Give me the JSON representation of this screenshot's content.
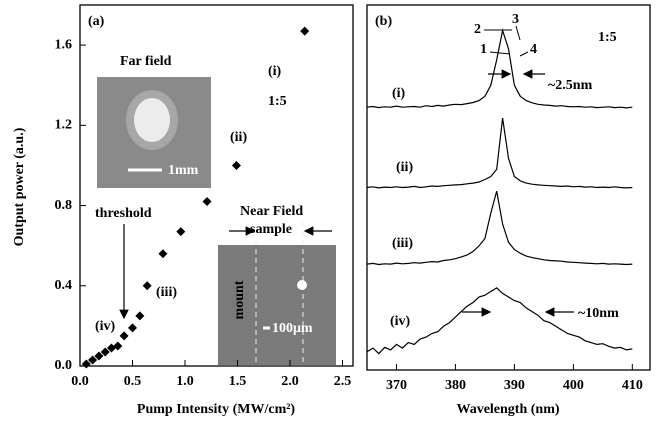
{
  "chart_data": [
    {
      "type": "scatter",
      "title": "(a)",
      "x_label": "Pump Intensity (MW/cm²)",
      "y_label": "Output power (a.u.)",
      "x": [
        0.06,
        0.12,
        0.18,
        0.24,
        0.3,
        0.36,
        0.42,
        0.5,
        0.57,
        0.64,
        0.79,
        0.96,
        1.21,
        1.49,
        2.14
      ],
      "values": [
        0.01,
        0.03,
        0.05,
        0.07,
        0.09,
        0.1,
        0.15,
        0.19,
        0.25,
        0.4,
        0.56,
        0.67,
        0.82,
        1.0,
        1.67
      ],
      "color": "#000000",
      "xlim": [
        0,
        2.6
      ],
      "ylim": [
        0,
        1.8
      ],
      "xticks": [
        {
          "value": 0,
          "label": "0.0"
        },
        0.5,
        {
          "value": 1,
          "label": "1.0"
        },
        1.5,
        {
          "value": 2,
          "label": "2.0"
        },
        2.5
      ],
      "yticks": [
        {
          "value": 0,
          "label": "0.0"
        },
        0.4,
        0.8,
        1.2,
        1.6
      ],
      "annotations": [
        "(i)",
        "1:5",
        "(ii)",
        "(iii)",
        "(iv)",
        "threshold",
        "Far field",
        "1mm",
        "Near Field",
        "sample",
        "mount",
        "100μm"
      ]
    },
    {
      "type": "line",
      "title": "(b)",
      "x_label": "Wavelength (nm)",
      "x": [
        365,
        366,
        367,
        368,
        369,
        370,
        371,
        372,
        373,
        374,
        375,
        376,
        377,
        378,
        379,
        380,
        381,
        382,
        383,
        384,
        385,
        386,
        387,
        388,
        389,
        390,
        391,
        392,
        393,
        394,
        395,
        396,
        397,
        398,
        399,
        400,
        401,
        402,
        403,
        404,
        405,
        406,
        407,
        408,
        409,
        410
      ],
      "series": [
        {
          "name": "(i)",
          "color": "#000000",
          "values": [
            7.2,
            7.22,
            7.19,
            7.21,
            7.2,
            7.23,
            7.2,
            7.21,
            7.22,
            7.2,
            7.24,
            7.22,
            7.25,
            7.23,
            7.26,
            7.28,
            7.27,
            7.3,
            7.33,
            7.38,
            7.5,
            7.8,
            8.5,
            9.3,
            8.8,
            7.8,
            7.5,
            7.38,
            7.32,
            7.28,
            7.26,
            7.25,
            7.23,
            7.24,
            7.22,
            7.21,
            7.22,
            7.2,
            7.21,
            7.19,
            7.2,
            7.21,
            7.19,
            7.2,
            7.18,
            7.2
          ]
        },
        {
          "name": "(ii)",
          "color": "#000000",
          "values": [
            5.0,
            5.02,
            4.99,
            5.01,
            5.0,
            5.02,
            5.0,
            5.01,
            5.03,
            5.0,
            5.02,
            5.04,
            5.03,
            5.05,
            5.06,
            5.07,
            5.08,
            5.1,
            5.12,
            5.15,
            5.22,
            5.3,
            5.5,
            6.9,
            5.8,
            5.3,
            5.18,
            5.12,
            5.09,
            5.07,
            5.06,
            5.05,
            5.04,
            5.03,
            5.04,
            5.02,
            5.03,
            5.01,
            5.02,
            5.0,
            5.01,
            5.0,
            5.02,
            5.0,
            4.99,
            5.0
          ]
        },
        {
          "name": "(iii)",
          "color": "#000000",
          "values": [
            2.9,
            2.92,
            2.89,
            2.91,
            2.9,
            2.93,
            2.91,
            2.92,
            2.94,
            2.93,
            2.95,
            2.97,
            2.96,
            3.0,
            3.02,
            3.05,
            3.1,
            3.15,
            3.25,
            3.4,
            3.6,
            4.3,
            4.9,
            4.0,
            3.5,
            3.3,
            3.2,
            3.12,
            3.08,
            3.05,
            3.02,
            3.0,
            2.99,
            2.98,
            2.96,
            2.95,
            2.94,
            2.93,
            2.92,
            2.91,
            2.92,
            2.9,
            2.91,
            2.9,
            2.89,
            2.9
          ]
        },
        {
          "name": "(iv)",
          "color": "#000000",
          "values": [
            0.5,
            0.6,
            0.45,
            0.62,
            0.55,
            0.7,
            0.6,
            0.75,
            0.7,
            0.85,
            0.9,
            1.0,
            1.05,
            1.2,
            1.3,
            1.45,
            1.6,
            1.75,
            1.85,
            2.0,
            2.05,
            2.15,
            2.25,
            2.1,
            2.0,
            1.9,
            1.85,
            1.7,
            1.6,
            1.5,
            1.35,
            1.3,
            1.2,
            1.1,
            1.0,
            0.95,
            0.9,
            0.8,
            0.75,
            0.7,
            0.72,
            0.65,
            0.6,
            0.62,
            0.55,
            0.58
          ]
        }
      ],
      "xlim": [
        365,
        413
      ],
      "ylim": [
        0,
        10
      ],
      "xticks": [
        370,
        380,
        390,
        400,
        410
      ],
      "annotations": [
        "1:5",
        "1",
        "2",
        "3",
        "4",
        "~2.5nm",
        "~10nm"
      ]
    }
  ]
}
